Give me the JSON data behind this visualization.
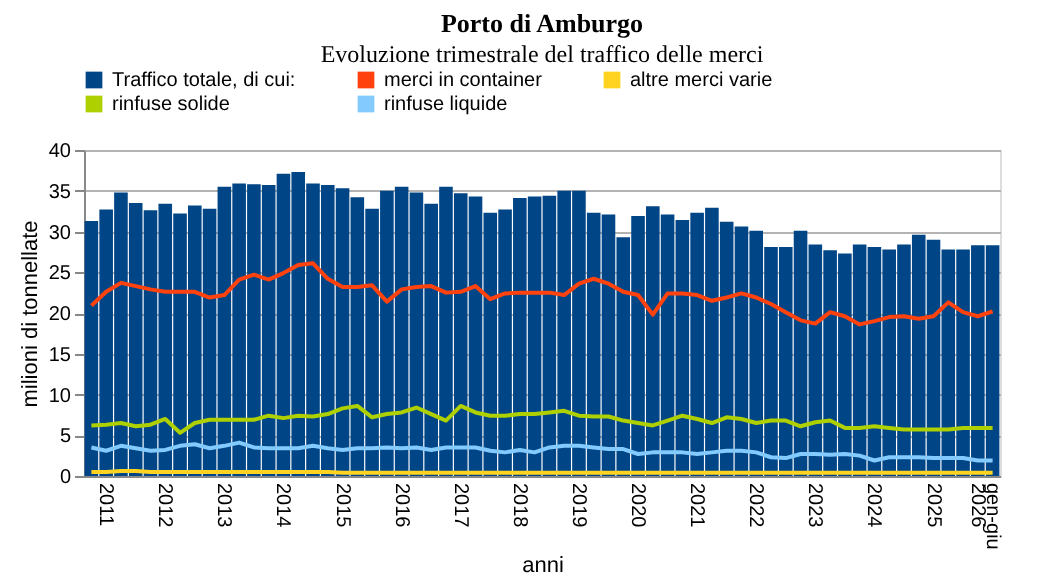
{
  "chart_data": {
    "type": "bar",
    "title": "Porto di Amburgo",
    "subtitle": "Evoluzione trimestrale del traffico delle merci",
    "xlabel": "anni",
    "ylabel": "milioni di tonnellate",
    "categories": [
      null,
      "2011",
      null,
      null,
      null,
      "2012",
      null,
      null,
      null,
      "2013",
      null,
      null,
      null,
      "2014",
      null,
      null,
      null,
      "2015",
      null,
      null,
      null,
      "2016",
      null,
      null,
      null,
      "2017",
      null,
      null,
      null,
      "2018",
      null,
      null,
      null,
      "2019",
      null,
      null,
      null,
      "2020",
      null,
      null,
      null,
      "2021",
      null,
      null,
      null,
      "2022",
      null,
      null,
      null,
      "2023",
      null,
      null,
      null,
      "2024",
      null,
      null,
      null,
      "2025",
      null,
      null,
      "2026",
      "gen-giu"
    ],
    "series": [
      {
        "name": "Traffico totale, di cui:",
        "color": "#004586",
        "values": [
          31.3,
          32.7,
          34.8,
          33.5,
          32.6,
          33.4,
          32.2,
          33.2,
          32.8,
          35.5,
          35.9,
          35.8,
          35.7,
          37.1,
          37.3,
          35.9,
          35.7,
          35.3,
          34.2,
          32.8,
          35.0,
          35.5,
          34.8,
          33.4,
          35.5,
          34.7,
          34.3,
          32.3,
          32.7,
          34.1,
          34.3,
          34.4,
          35.0,
          35.0,
          32.3,
          32.1,
          29.3,
          31.9,
          33.1,
          32.1,
          31.4,
          32.3,
          32.9,
          31.2,
          30.6,
          30.1,
          28.1,
          28.1,
          30.1,
          28.4,
          27.7,
          27.3,
          28.4,
          28.1,
          27.8,
          28.4,
          29.6,
          29.0,
          27.8,
          27.8,
          28.3,
          28.3
        ]
      },
      {
        "name": "merci in container",
        "type": "line",
        "color": "#ff420e",
        "values": [
          20.9,
          22.6,
          23.7,
          23.3,
          22.9,
          22.6,
          22.6,
          22.6,
          21.9,
          22.2,
          24.1,
          24.7,
          24.1,
          24.9,
          25.9,
          26.1,
          24.2,
          23.2,
          23.2,
          23.4,
          21.4,
          22.9,
          23.2,
          23.3,
          22.5,
          22.6,
          23.3,
          21.7,
          22.4,
          22.5,
          22.5,
          22.5,
          22.2,
          23.6,
          24.2,
          23.6,
          22.6,
          22.2,
          19.8,
          22.4,
          22.4,
          22.2,
          21.5,
          21.9,
          22.4,
          21.9,
          21.1,
          20.1,
          19.1,
          18.7,
          20.1,
          19.6,
          18.6,
          19.0,
          19.5,
          19.6,
          19.3,
          19.6,
          21.3,
          20.1,
          19.6,
          20.2
        ]
      },
      {
        "name": "altre merci varie",
        "type": "line",
        "color": "#ffd320",
        "values": [
          0.5,
          0.5,
          0.6,
          0.6,
          0.5,
          0.5,
          0.5,
          0.5,
          0.5,
          0.5,
          0.5,
          0.5,
          0.5,
          0.5,
          0.5,
          0.5,
          0.5,
          0.4,
          0.4,
          0.4,
          0.4,
          0.4,
          0.4,
          0.4,
          0.4,
          0.4,
          0.4,
          0.4,
          0.4,
          0.4,
          0.4,
          0.4,
          0.4,
          0.4,
          0.4,
          0.4,
          0.4,
          0.4,
          0.4,
          0.4,
          0.4,
          0.4,
          0.4,
          0.4,
          0.4,
          0.4,
          0.4,
          0.4,
          0.4,
          0.4,
          0.4,
          0.4,
          0.4,
          0.4,
          0.4,
          0.4,
          0.4,
          0.4,
          0.4,
          0.4,
          0.4,
          0.4
        ]
      },
      {
        "name": "rinfuse solide",
        "type": "line",
        "color": "#aecf00",
        "values": [
          6.2,
          6.3,
          6.5,
          6.1,
          6.3,
          7.0,
          5.3,
          6.5,
          6.9,
          6.9,
          6.9,
          6.9,
          7.4,
          7.1,
          7.4,
          7.3,
          7.6,
          8.3,
          8.6,
          7.2,
          7.6,
          7.8,
          8.4,
          7.6,
          6.8,
          8.6,
          7.8,
          7.4,
          7.4,
          7.6,
          7.6,
          7.8,
          8.0,
          7.4,
          7.3,
          7.3,
          6.8,
          6.5,
          6.2,
          6.8,
          7.4,
          7.0,
          6.5,
          7.2,
          7.0,
          6.5,
          6.8,
          6.8,
          6.1,
          6.6,
          6.8,
          5.9,
          5.9,
          6.1,
          5.9,
          5.7,
          5.7,
          5.7,
          5.7,
          5.9,
          5.9,
          5.9
        ]
      },
      {
        "name": "rinfuse liquide",
        "type": "line",
        "color": "#83caff",
        "values": [
          3.5,
          3.1,
          3.7,
          3.4,
          3.1,
          3.2,
          3.7,
          3.9,
          3.4,
          3.7,
          4.1,
          3.5,
          3.4,
          3.4,
          3.4,
          3.7,
          3.4,
          3.2,
          3.4,
          3.4,
          3.5,
          3.4,
          3.5,
          3.2,
          3.5,
          3.5,
          3.5,
          3.1,
          2.9,
          3.2,
          2.9,
          3.5,
          3.7,
          3.7,
          3.5,
          3.3,
          3.3,
          2.7,
          2.9,
          2.9,
          2.9,
          2.7,
          2.9,
          3.1,
          3.1,
          2.9,
          2.3,
          2.2,
          2.7,
          2.7,
          2.6,
          2.7,
          2.5,
          1.9,
          2.3,
          2.3,
          2.3,
          2.2,
          2.2,
          2.2,
          1.9,
          1.9
        ]
      }
    ],
    "ylim": [
      0,
      40
    ],
    "yticks": [
      0,
      5,
      10,
      15,
      20,
      25,
      30,
      35,
      40
    ],
    "grid": "y",
    "legend": "top",
    "marker": "none",
    "line_style": "solid"
  }
}
